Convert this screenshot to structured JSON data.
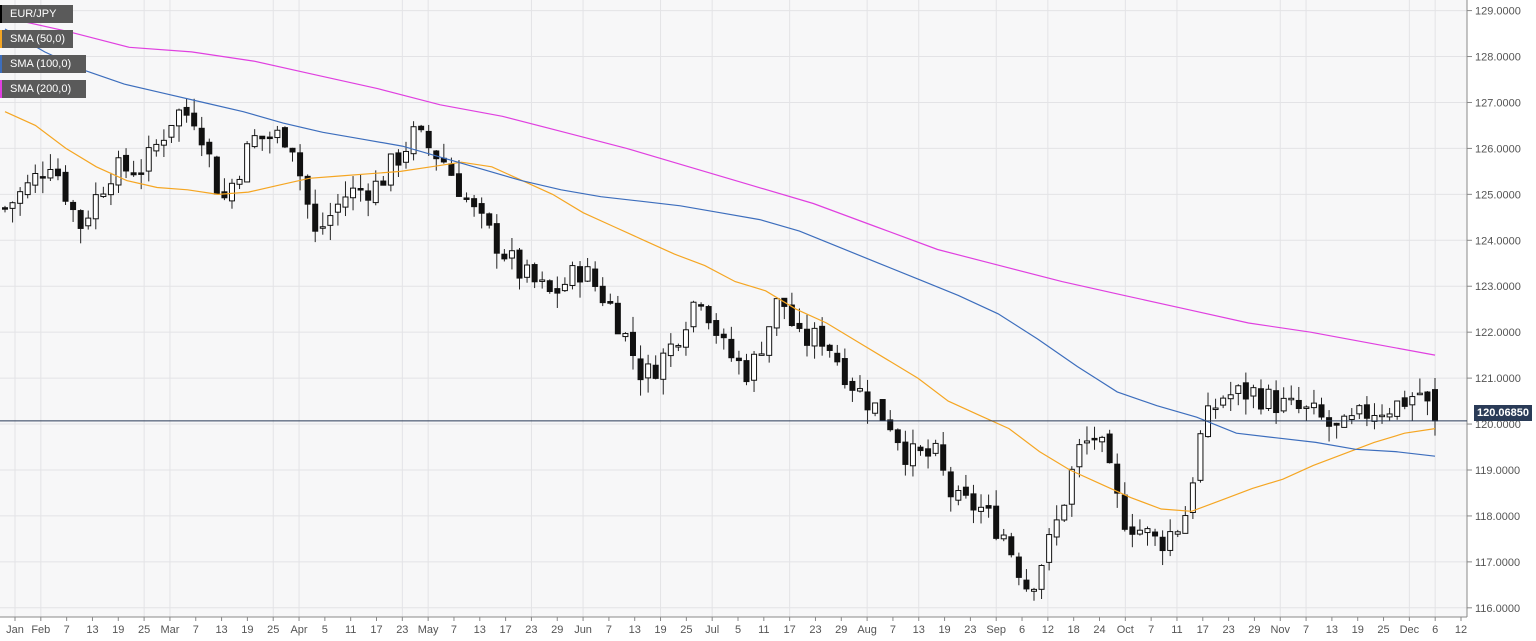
{
  "chart_data": {
    "type": "candlestick",
    "title": "EUR/JPY",
    "ylim": [
      115.8,
      129.1
    ],
    "y_ticks": [
      "116.0000",
      "117.0000",
      "118.0000",
      "119.0000",
      "120.0000",
      "121.0000",
      "122.0000",
      "123.0000",
      "124.0000",
      "125.0000",
      "126.0000",
      "127.0000",
      "128.0000",
      "129.0000"
    ],
    "x_ticks": [
      "Jan",
      "Feb",
      "7",
      "13",
      "19",
      "25",
      "Mar",
      "7",
      "13",
      "19",
      "25",
      "Apr",
      "5",
      "11",
      "17",
      "23",
      "May",
      "7",
      "13",
      "17",
      "23",
      "29",
      "Jun",
      "7",
      "13",
      "19",
      "25",
      "Jul",
      "5",
      "11",
      "17",
      "23",
      "29",
      "Aug",
      "7",
      "13",
      "19",
      "23",
      "Sep",
      "6",
      "12",
      "18",
      "24",
      "Oct",
      "7",
      "11",
      "17",
      "23",
      "29",
      "Nov",
      "7",
      "13",
      "19",
      "25",
      "Dec",
      "6",
      "12"
    ],
    "current_price": 120.0685,
    "current_price_label": "120.06850",
    "grid": true,
    "legend_placement": "top-left",
    "series": [
      {
        "name": "EUR/JPY",
        "color": "#000000"
      },
      {
        "name": "SMA (50,0)",
        "color": "#f5a623",
        "kind": "line",
        "values": [
          126.8,
          126.5,
          126.0,
          125.6,
          125.3,
          125.15,
          125.1,
          125.0,
          125.05,
          125.2,
          125.35,
          125.4,
          125.45,
          125.5,
          125.6,
          125.7,
          125.6,
          125.3,
          125.0,
          124.6,
          124.3,
          124.0,
          123.7,
          123.45,
          123.1,
          122.9,
          122.5,
          122.2,
          121.8,
          121.4,
          121.0,
          120.5,
          120.2,
          119.9,
          119.4,
          119.0,
          118.7,
          118.4,
          118.15,
          118.1,
          118.35,
          118.6,
          118.8,
          119.1,
          119.35,
          119.6,
          119.8,
          119.9
        ]
      },
      {
        "name": "SMA (100,0)",
        "color": "#3d6ebd",
        "kind": "line",
        "values": [
          128.6,
          128.1,
          127.7,
          127.4,
          127.2,
          127.0,
          126.8,
          126.55,
          126.35,
          126.2,
          126.05,
          125.8,
          125.55,
          125.3,
          125.1,
          124.95,
          124.85,
          124.75,
          124.6,
          124.45,
          124.2,
          123.85,
          123.5,
          123.15,
          122.8,
          122.4,
          121.85,
          121.25,
          120.7,
          120.4,
          120.15,
          119.8,
          119.7,
          119.6,
          119.45,
          119.4,
          119.3
        ]
      },
      {
        "name": "SMA (200,0)",
        "color": "#e040e0",
        "kind": "line",
        "values": [
          128.85,
          128.55,
          128.2,
          128.1,
          127.9,
          127.6,
          127.3,
          126.95,
          126.7,
          126.35,
          126.0,
          125.6,
          125.2,
          124.8,
          124.3,
          123.8,
          123.45,
          123.1,
          122.8,
          122.5,
          122.2,
          122.0,
          121.75,
          121.5
        ]
      }
    ]
  }
}
